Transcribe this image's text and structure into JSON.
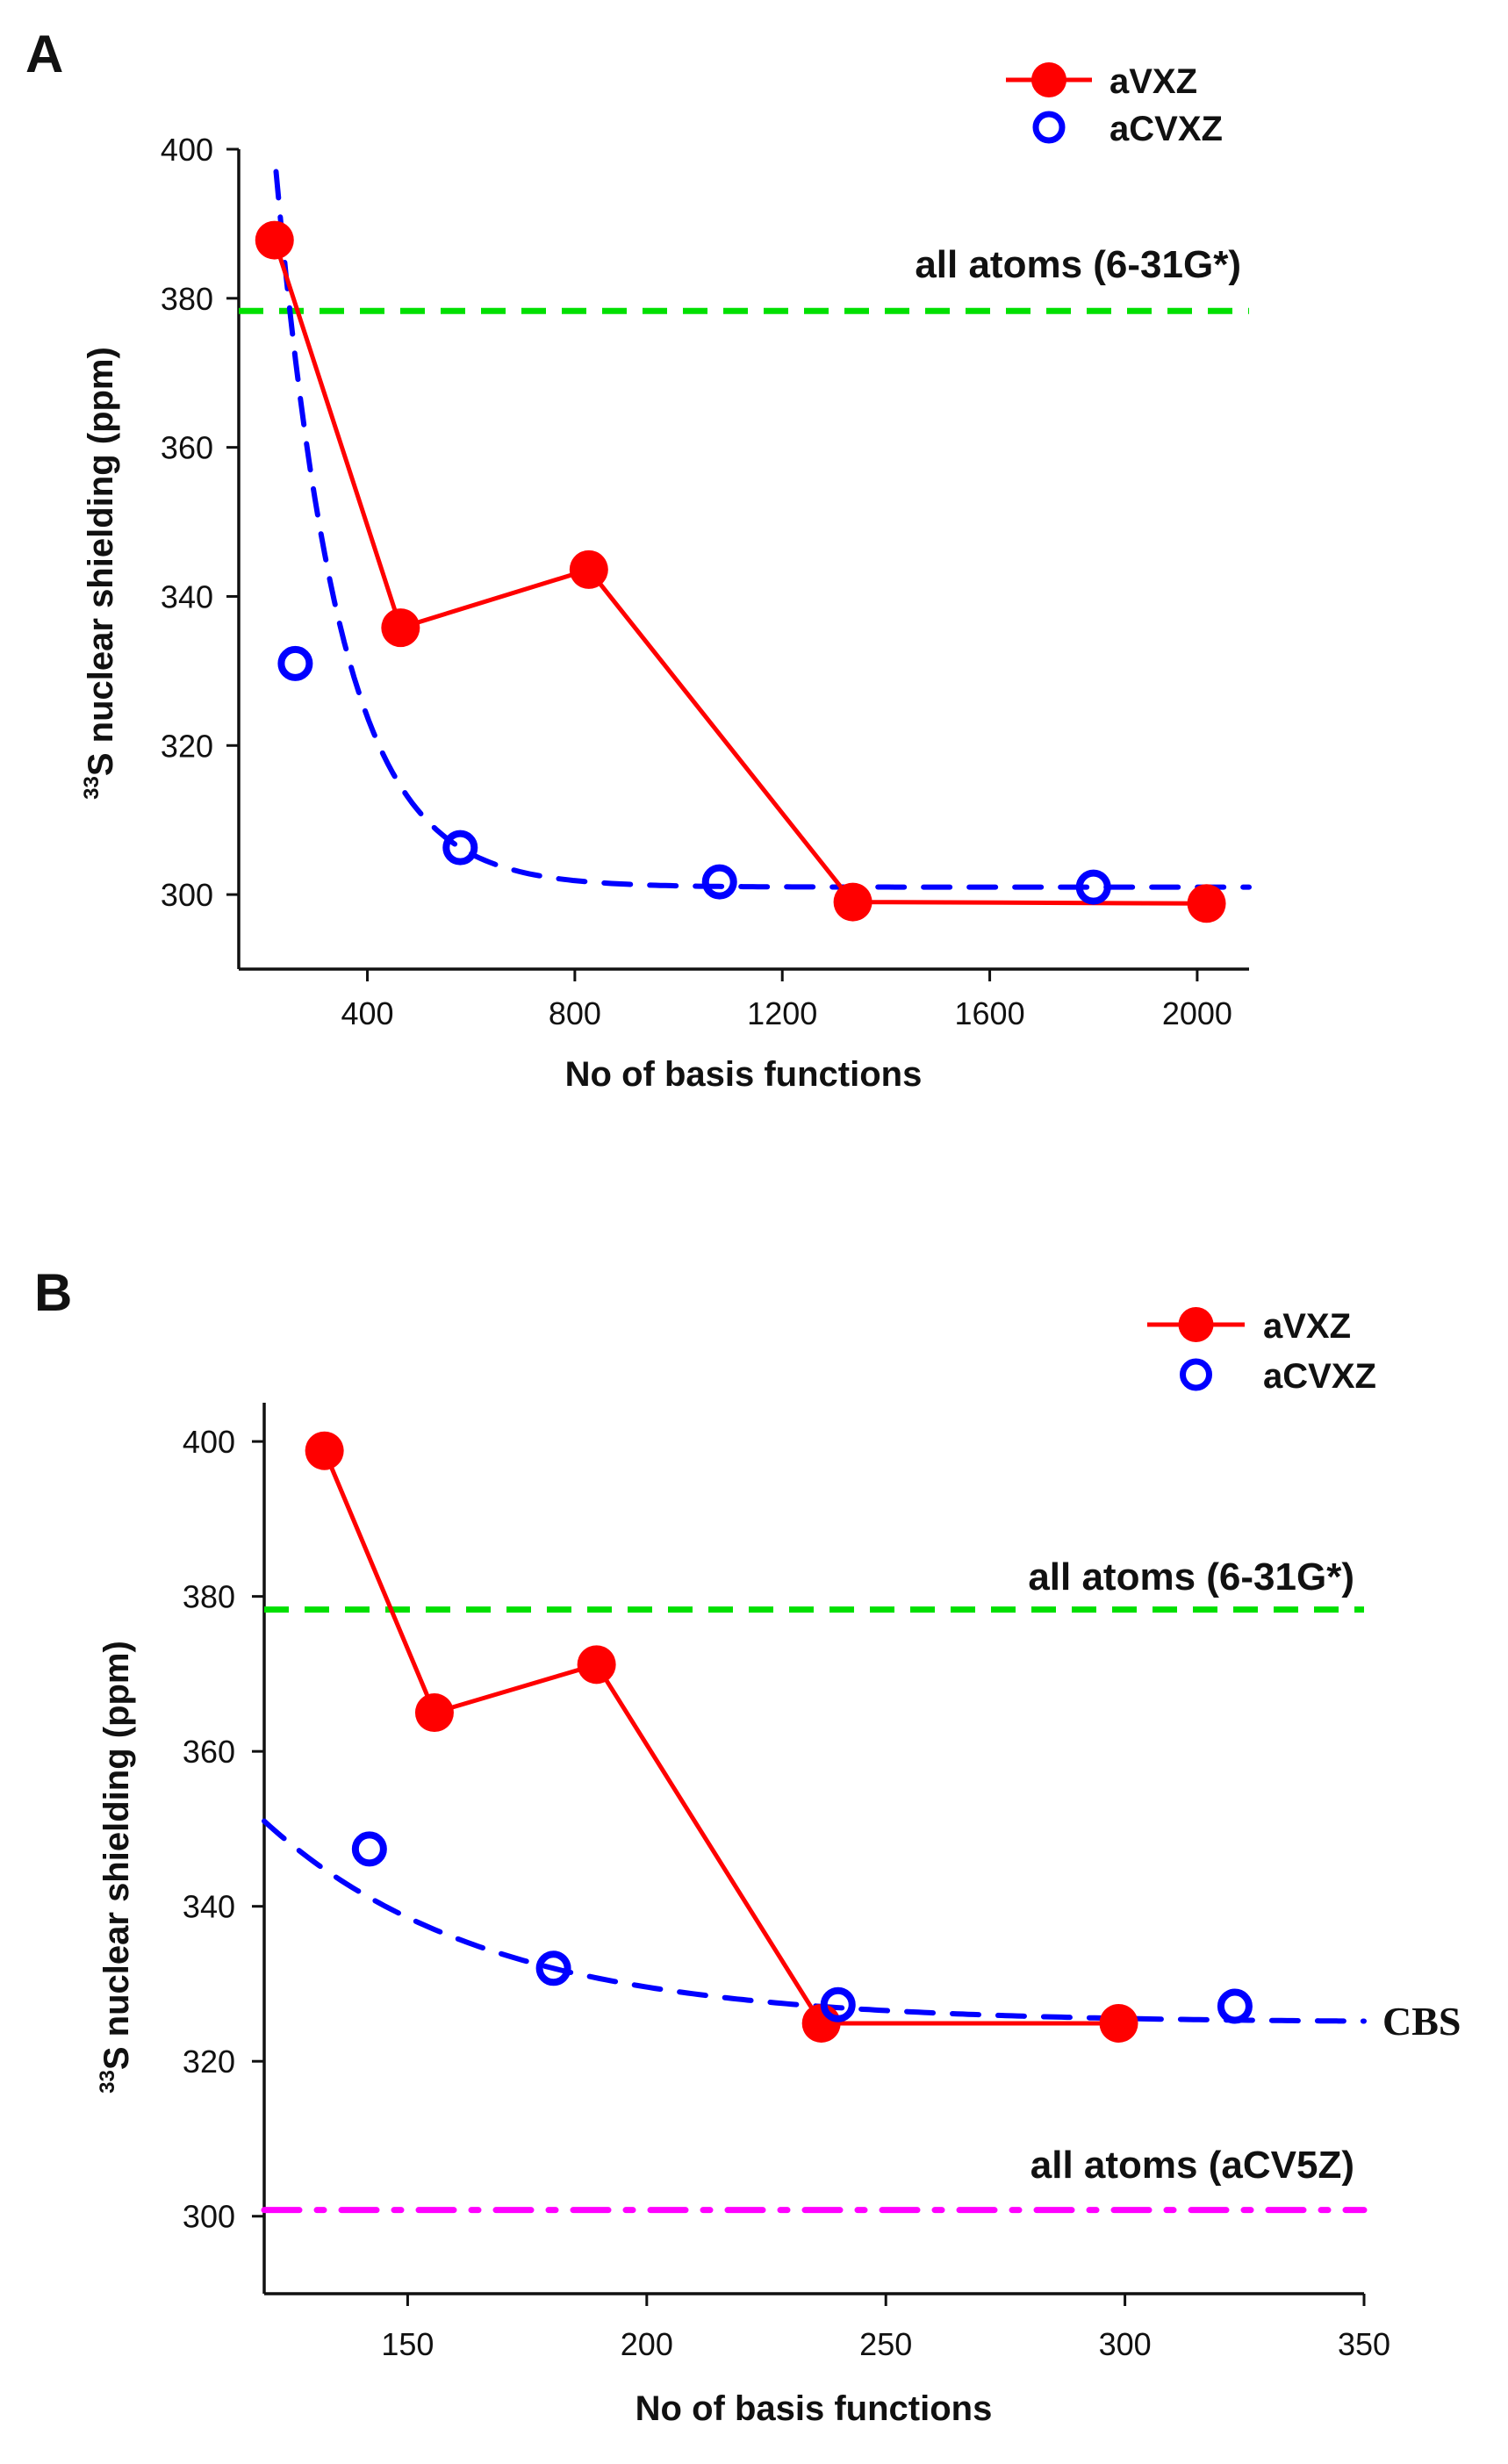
{
  "chart_data": [
    {
      "type": "line",
      "panel_label": "A",
      "xlabel": "No of basis functions",
      "ylabel_sup": "33",
      "ylabel": "S nuclear shielding (ppm)",
      "xlim": [
        152,
        2100
      ],
      "ylim": [
        290,
        400
      ],
      "xticks": [
        400,
        800,
        1200,
        1600,
        2000
      ],
      "yticks": [
        300,
        320,
        340,
        360,
        380,
        400
      ],
      "grid": false,
      "legend_position": "top-right",
      "series": [
        {
          "name": "aVXZ",
          "color": "#ff0000",
          "marker": "filled-circle",
          "line": "solid",
          "x": [
            221,
            464,
            827,
            1336,
            2018
          ],
          "y": [
            387.8,
            335.8,
            343.6,
            299.0,
            298.8
          ]
        },
        {
          "name": "aCVXZ",
          "color": "#0000ff",
          "marker": "open-circle",
          "line": "none",
          "x": [
            261,
            579,
            1079,
            1800
          ],
          "y": [
            331.0,
            306.3,
            301.7,
            301.0
          ]
        }
      ],
      "fit": {
        "color": "#0000ff",
        "line": "dashed",
        "model": "exponential",
        "asymptote": 301,
        "amplitude": 96,
        "rate": 0.00816,
        "x0": 224,
        "xrange": [
          224,
          2100
        ]
      },
      "reference_lines": [
        {
          "label": "all atoms (6-31G*)",
          "y": 378.3,
          "color": "#00e000",
          "style": "dashed"
        }
      ]
    },
    {
      "type": "line",
      "panel_label": "B",
      "xlabel": "No of basis functions",
      "ylabel_sup": "33",
      "ylabel": "S nuclear shielding (ppm)",
      "xlim": [
        120,
        350
      ],
      "ylim": [
        290,
        405
      ],
      "xticks": [
        150,
        200,
        250,
        300,
        350
      ],
      "yticks": [
        300,
        320,
        340,
        360,
        380,
        400
      ],
      "grid": false,
      "legend_position": "top-right",
      "series": [
        {
          "name": "aVXZ",
          "color": "#ff0000",
          "marker": "filled-circle",
          "line": "solid",
          "x": [
            132.6,
            155.6,
            189.5,
            236.5,
            298.7
          ],
          "y": [
            398.8,
            365.0,
            371.2,
            324.9,
            324.9
          ]
        },
        {
          "name": "aCVXZ",
          "color": "#0000ff",
          "marker": "open-circle",
          "line": "none",
          "x": [
            142,
            180.5,
            240,
            323
          ],
          "y": [
            347.4,
            332.0,
            327.3,
            327.1
          ]
        }
      ],
      "fit": {
        "label": "CBS",
        "color": "#0000ff",
        "line": "dashed",
        "model": "exponential",
        "asymptote": 325,
        "amplitude": 26,
        "rate": 0.0217,
        "x0": 120,
        "xrange": [
          120,
          350
        ]
      },
      "reference_lines": [
        {
          "label": "all atoms (6-31G*)",
          "y": 378.3,
          "color": "#00e000",
          "style": "dashed"
        },
        {
          "label": "all atoms (aCV5Z)",
          "y": 300.8,
          "color": "#ff00ff",
          "style": "dash-dot"
        }
      ]
    }
  ]
}
